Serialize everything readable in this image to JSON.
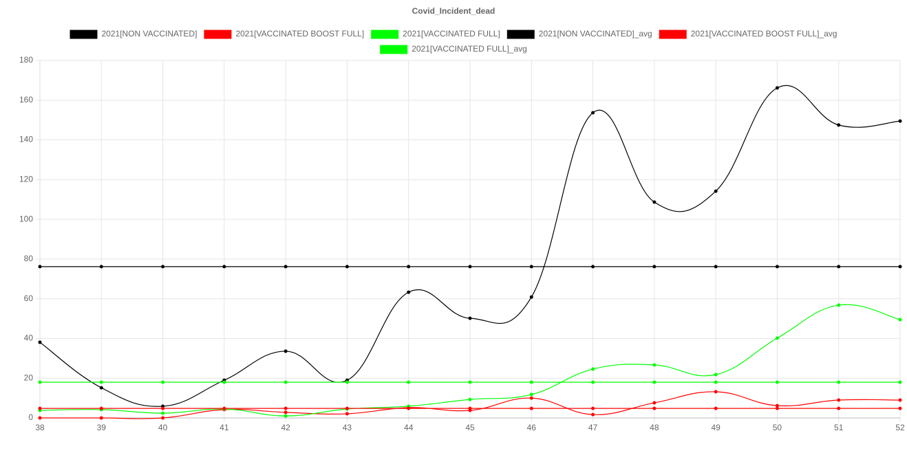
{
  "chart_data": {
    "type": "line",
    "title": "Covid_Incident_dead",
    "categories": [
      "38",
      "39",
      "40",
      "41",
      "42",
      "43",
      "44",
      "45",
      "46",
      "47",
      "48",
      "49",
      "50",
      "51",
      "52"
    ],
    "ylim": [
      0,
      180
    ],
    "yticks": [
      0,
      20,
      40,
      60,
      80,
      100,
      120,
      140,
      160,
      180
    ],
    "grid": true,
    "legend": "top",
    "series": [
      {
        "name": "2021[NON VACCINATED]",
        "color": "#000000",
        "values": [
          38.1,
          15.2,
          5.9,
          19,
          33.6,
          19,
          63.3,
          50.2,
          60.9,
          153.7,
          108.7,
          114.2,
          166.2,
          147.5,
          149.5
        ]
      },
      {
        "name": "2021[VACCINATED BOOST FULL]",
        "color": "#ff0000",
        "values": [
          0,
          0,
          0,
          4.2,
          2.8,
          2.1,
          5.2,
          3.8,
          10,
          1.7,
          7.6,
          13.2,
          6.2,
          9,
          9
        ]
      },
      {
        "name": "2021[VACCINATED FULL]",
        "color": "#00ff00",
        "values": [
          3.8,
          4.2,
          2.4,
          4.5,
          1,
          4.5,
          5.9,
          9.3,
          11.8,
          24.6,
          26.7,
          21.8,
          40.2,
          56.8,
          49.5
        ]
      },
      {
        "name": "2021[NON VACCINATED]_avg",
        "color": "#000000",
        "values": [
          76.2,
          76.2,
          76.2,
          76.2,
          76.2,
          76.2,
          76.2,
          76.2,
          76.2,
          76.2,
          76.2,
          76.2,
          76.2,
          76.2,
          76.2
        ]
      },
      {
        "name": "2021[VACCINATED BOOST FULL]_avg",
        "color": "#ff0000",
        "values": [
          4.8,
          4.8,
          4.8,
          4.8,
          4.8,
          4.8,
          4.8,
          4.8,
          4.8,
          4.8,
          4.8,
          4.8,
          4.8,
          4.8,
          4.8
        ]
      },
      {
        "name": "2021[VACCINATED FULL]_avg",
        "color": "#00ff00",
        "values": [
          18,
          18,
          18,
          18,
          18,
          18,
          18,
          18,
          18,
          18,
          18,
          18,
          18,
          18,
          18
        ]
      }
    ]
  }
}
